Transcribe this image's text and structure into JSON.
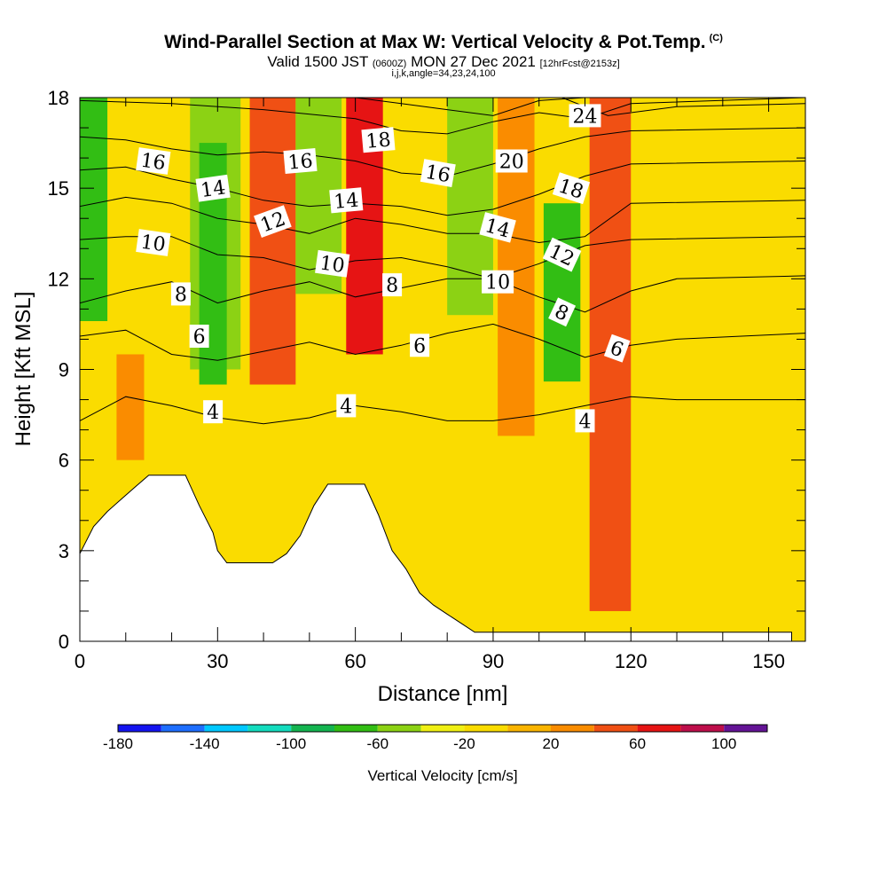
{
  "header": {
    "title": "Wind-Parallel Section at Max W: Vertical Velocity & Pot.Temp.",
    "copyright": "(C)",
    "valid_prefix": "Valid 1500 JST",
    "valid_z": "(0600Z)",
    "valid_date": "MON 27 Dec 2021",
    "valid_fcst": "[12hrFcst@2153z]",
    "ijk": "i,j,k,angle=34,23,24,100"
  },
  "chart_data": {
    "type": "heatmap",
    "xlabel": "Distance [nm]",
    "ylabel": "Height [Kft MSL]",
    "xlim": [
      0,
      158
    ],
    "ylim": [
      0,
      18
    ],
    "xticks": [
      0,
      30,
      60,
      90,
      120,
      150
    ],
    "yticks": [
      0,
      3,
      6,
      9,
      12,
      15,
      18
    ],
    "colorbar": {
      "title": "Vertical Velocity [cm/s]",
      "ticks": [
        -180,
        -140,
        -100,
        -60,
        -20,
        20,
        60,
        100
      ],
      "levels": [
        -180,
        -160,
        -140,
        -120,
        -100,
        -80,
        -60,
        -40,
        -20,
        0,
        20,
        40,
        60,
        80,
        100,
        120
      ],
      "colors": [
        "#1414f0",
        "#1e6eff",
        "#00c8ff",
        "#14dcbe",
        "#14b450",
        "#32be14",
        "#8cd214",
        "#f0f014",
        "#fadc00",
        "#fab400",
        "#fa8c00",
        "#f05014",
        "#e61414",
        "#be0f4b",
        "#641496"
      ]
    },
    "terrain": [
      [
        0,
        2.9
      ],
      [
        3,
        3.8
      ],
      [
        6,
        4.3
      ],
      [
        9,
        4.7
      ],
      [
        12,
        5.1
      ],
      [
        15,
        5.5
      ],
      [
        23,
        5.5
      ],
      [
        26,
        4.5
      ],
      [
        29,
        3.6
      ],
      [
        30,
        3.0
      ],
      [
        32,
        2.6
      ],
      [
        42,
        2.6
      ],
      [
        45,
        2.9
      ],
      [
        48,
        3.5
      ],
      [
        51,
        4.5
      ],
      [
        54,
        5.2
      ],
      [
        62,
        5.2
      ],
      [
        65,
        4.2
      ],
      [
        68,
        3.0
      ],
      [
        71,
        2.4
      ],
      [
        74,
        1.6
      ],
      [
        77,
        1.2
      ],
      [
        80,
        0.9
      ],
      [
        83,
        0.6
      ],
      [
        86,
        0.3
      ],
      [
        155,
        0.3
      ]
    ],
    "theta_contours": [
      {
        "label": "4",
        "points": [
          [
            0,
            7.3
          ],
          [
            10,
            8.1
          ],
          [
            20,
            7.8
          ],
          [
            30,
            7.4
          ],
          [
            40,
            7.2
          ],
          [
            50,
            7.4
          ],
          [
            60,
            7.8
          ],
          [
            70,
            7.6
          ],
          [
            80,
            7.3
          ],
          [
            90,
            7.3
          ],
          [
            100,
            7.5
          ],
          [
            110,
            7.8
          ],
          [
            120,
            8.1
          ],
          [
            130,
            8.0
          ],
          [
            158,
            8.0
          ]
        ]
      },
      {
        "label": "6",
        "points": [
          [
            0,
            10.1
          ],
          [
            10,
            10.3
          ],
          [
            20,
            9.5
          ],
          [
            30,
            9.3
          ],
          [
            40,
            9.6
          ],
          [
            50,
            9.9
          ],
          [
            60,
            9.5
          ],
          [
            70,
            9.8
          ],
          [
            80,
            10.2
          ],
          [
            90,
            10.5
          ],
          [
            100,
            10.0
          ],
          [
            110,
            9.4
          ],
          [
            120,
            9.8
          ],
          [
            130,
            10.0
          ],
          [
            158,
            10.2
          ]
        ]
      },
      {
        "label": "8",
        "points": [
          [
            0,
            11.2
          ],
          [
            10,
            11.6
          ],
          [
            20,
            11.9
          ],
          [
            30,
            11.2
          ],
          [
            40,
            11.6
          ],
          [
            50,
            11.9
          ],
          [
            60,
            11.4
          ],
          [
            70,
            11.7
          ],
          [
            80,
            12.0
          ],
          [
            90,
            12.0
          ],
          [
            100,
            11.4
          ],
          [
            110,
            10.9
          ],
          [
            120,
            11.6
          ],
          [
            130,
            12.0
          ],
          [
            158,
            12.1
          ]
        ]
      },
      {
        "label": "10",
        "points": [
          [
            0,
            13.3
          ],
          [
            10,
            13.4
          ],
          [
            20,
            13.4
          ],
          [
            30,
            12.8
          ],
          [
            40,
            12.7
          ],
          [
            50,
            12.3
          ],
          [
            60,
            12.6
          ],
          [
            70,
            12.7
          ],
          [
            80,
            12.4
          ],
          [
            90,
            12.0
          ],
          [
            100,
            12.5
          ],
          [
            110,
            13.1
          ],
          [
            120,
            13.3
          ],
          [
            158,
            13.4
          ]
        ]
      },
      {
        "label": "12",
        "points": [
          [
            0,
            14.4
          ],
          [
            10,
            14.7
          ],
          [
            20,
            14.5
          ],
          [
            30,
            14.0
          ],
          [
            40,
            13.8
          ],
          [
            50,
            13.5
          ],
          [
            60,
            14.0
          ],
          [
            70,
            13.8
          ],
          [
            80,
            13.5
          ],
          [
            90,
            13.5
          ],
          [
            100,
            13.2
          ],
          [
            110,
            13.4
          ],
          [
            120,
            14.5
          ],
          [
            158,
            14.6
          ]
        ]
      },
      {
        "label": "14",
        "points": [
          [
            0,
            15.6
          ],
          [
            10,
            15.7
          ],
          [
            20,
            15.3
          ],
          [
            30,
            15.0
          ],
          [
            40,
            14.6
          ],
          [
            50,
            14.4
          ],
          [
            60,
            14.5
          ],
          [
            70,
            14.4
          ],
          [
            80,
            14.1
          ],
          [
            90,
            14.3
          ],
          [
            100,
            14.8
          ],
          [
            110,
            15.4
          ],
          [
            120,
            15.8
          ],
          [
            158,
            15.9
          ]
        ]
      },
      {
        "label": "16",
        "points": [
          [
            0,
            16.7
          ],
          [
            10,
            16.6
          ],
          [
            20,
            16.3
          ],
          [
            30,
            16.1
          ],
          [
            40,
            16.2
          ],
          [
            50,
            16.1
          ],
          [
            60,
            15.9
          ],
          [
            70,
            15.5
          ],
          [
            80,
            15.4
          ],
          [
            90,
            15.8
          ],
          [
            100,
            16.3
          ],
          [
            110,
            16.7
          ],
          [
            120,
            16.9
          ],
          [
            158,
            17.0
          ]
        ]
      },
      {
        "label": "18",
        "points": [
          [
            0,
            17.9
          ],
          [
            20,
            17.8
          ],
          [
            40,
            17.6
          ],
          [
            60,
            17.3
          ],
          [
            70,
            16.9
          ],
          [
            80,
            16.8
          ],
          [
            90,
            17.2
          ],
          [
            100,
            17.5
          ],
          [
            110,
            17.3
          ],
          [
            120,
            17.8
          ],
          [
            158,
            18.0
          ]
        ]
      },
      {
        "label": "20",
        "points": [
          [
            60,
            18.0
          ],
          [
            70,
            17.8
          ],
          [
            80,
            17.6
          ],
          [
            90,
            17.4
          ],
          [
            100,
            17.9
          ],
          [
            110,
            18.0
          ]
        ]
      },
      {
        "label": "24",
        "points": [
          [
            105,
            18.0
          ],
          [
            115,
            17.4
          ],
          [
            120,
            17.5
          ],
          [
            130,
            17.7
          ],
          [
            158,
            17.8
          ]
        ]
      }
    ],
    "theta_labels": [
      {
        "text": "16",
        "x": 16,
        "y": 15.9,
        "rot": 8
      },
      {
        "text": "14",
        "x": 29,
        "y": 15.0,
        "rot": -8
      },
      {
        "text": "16",
        "x": 48,
        "y": 15.9,
        "rot": -5
      },
      {
        "text": "18",
        "x": 65,
        "y": 16.6,
        "rot": -5
      },
      {
        "text": "14",
        "x": 58,
        "y": 14.6,
        "rot": -5
      },
      {
        "text": "12",
        "x": 42,
        "y": 13.9,
        "rot": -20
      },
      {
        "text": "16",
        "x": 78,
        "y": 15.5,
        "rot": 10
      },
      {
        "text": "20",
        "x": 94,
        "y": 15.9,
        "rot": 0
      },
      {
        "text": "24",
        "x": 110,
        "y": 17.4,
        "rot": 0
      },
      {
        "text": "18",
        "x": 107,
        "y": 15.0,
        "rot": 18
      },
      {
        "text": "14",
        "x": 91,
        "y": 13.7,
        "rot": 15
      },
      {
        "text": "12",
        "x": 105,
        "y": 12.8,
        "rot": 25
      },
      {
        "text": "10",
        "x": 16,
        "y": 13.2,
        "rot": 8
      },
      {
        "text": "10",
        "x": 55,
        "y": 12.5,
        "rot": 8
      },
      {
        "text": "10",
        "x": 91,
        "y": 11.9,
        "rot": 0
      },
      {
        "text": "8",
        "x": 22,
        "y": 11.5,
        "rot": 0
      },
      {
        "text": "8",
        "x": 68,
        "y": 11.8,
        "rot": 0
      },
      {
        "text": "8",
        "x": 105,
        "y": 10.9,
        "rot": 25
      },
      {
        "text": "6",
        "x": 26,
        "y": 10.1,
        "rot": 0
      },
      {
        "text": "6",
        "x": 74,
        "y": 9.8,
        "rot": 0
      },
      {
        "text": "6",
        "x": 117,
        "y": 9.7,
        "rot": 20
      },
      {
        "text": "4",
        "x": 29,
        "y": 7.6,
        "rot": 0
      },
      {
        "text": "4",
        "x": 58,
        "y": 7.8,
        "rot": 0
      },
      {
        "text": "4",
        "x": 110,
        "y": 7.3,
        "rot": 0
      }
    ],
    "velocity_bands": [
      {
        "x0": 0,
        "x1": 6,
        "y0": 10.6,
        "y1": 18,
        "color": "#32be14"
      },
      {
        "x0": 24,
        "x1": 35,
        "y0": 9.0,
        "y1": 18,
        "color": "#8cd214"
      },
      {
        "x0": 26,
        "x1": 32,
        "y0": 8.5,
        "y1": 16.5,
        "color": "#32be14"
      },
      {
        "x0": 37,
        "x1": 47,
        "y0": 8.5,
        "y1": 18,
        "color": "#f05014"
      },
      {
        "x0": 47,
        "x1": 57,
        "y0": 11.5,
        "y1": 18,
        "color": "#8cd214"
      },
      {
        "x0": 58,
        "x1": 66,
        "y0": 9.5,
        "y1": 18,
        "color": "#e61414"
      },
      {
        "x0": 80,
        "x1": 90,
        "y0": 10.8,
        "y1": 18,
        "color": "#8cd214"
      },
      {
        "x0": 91,
        "x1": 99,
        "y0": 6.8,
        "y1": 18,
        "color": "#fa8c00"
      },
      {
        "x0": 101,
        "x1": 109,
        "y0": 8.6,
        "y1": 14.5,
        "color": "#32be14"
      },
      {
        "x0": 111,
        "x1": 120,
        "y0": 1.0,
        "y1": 18,
        "color": "#f05014"
      },
      {
        "x0": 8,
        "x1": 14,
        "y0": 6.0,
        "y1": 9.5,
        "color": "#fa8c00"
      }
    ]
  }
}
